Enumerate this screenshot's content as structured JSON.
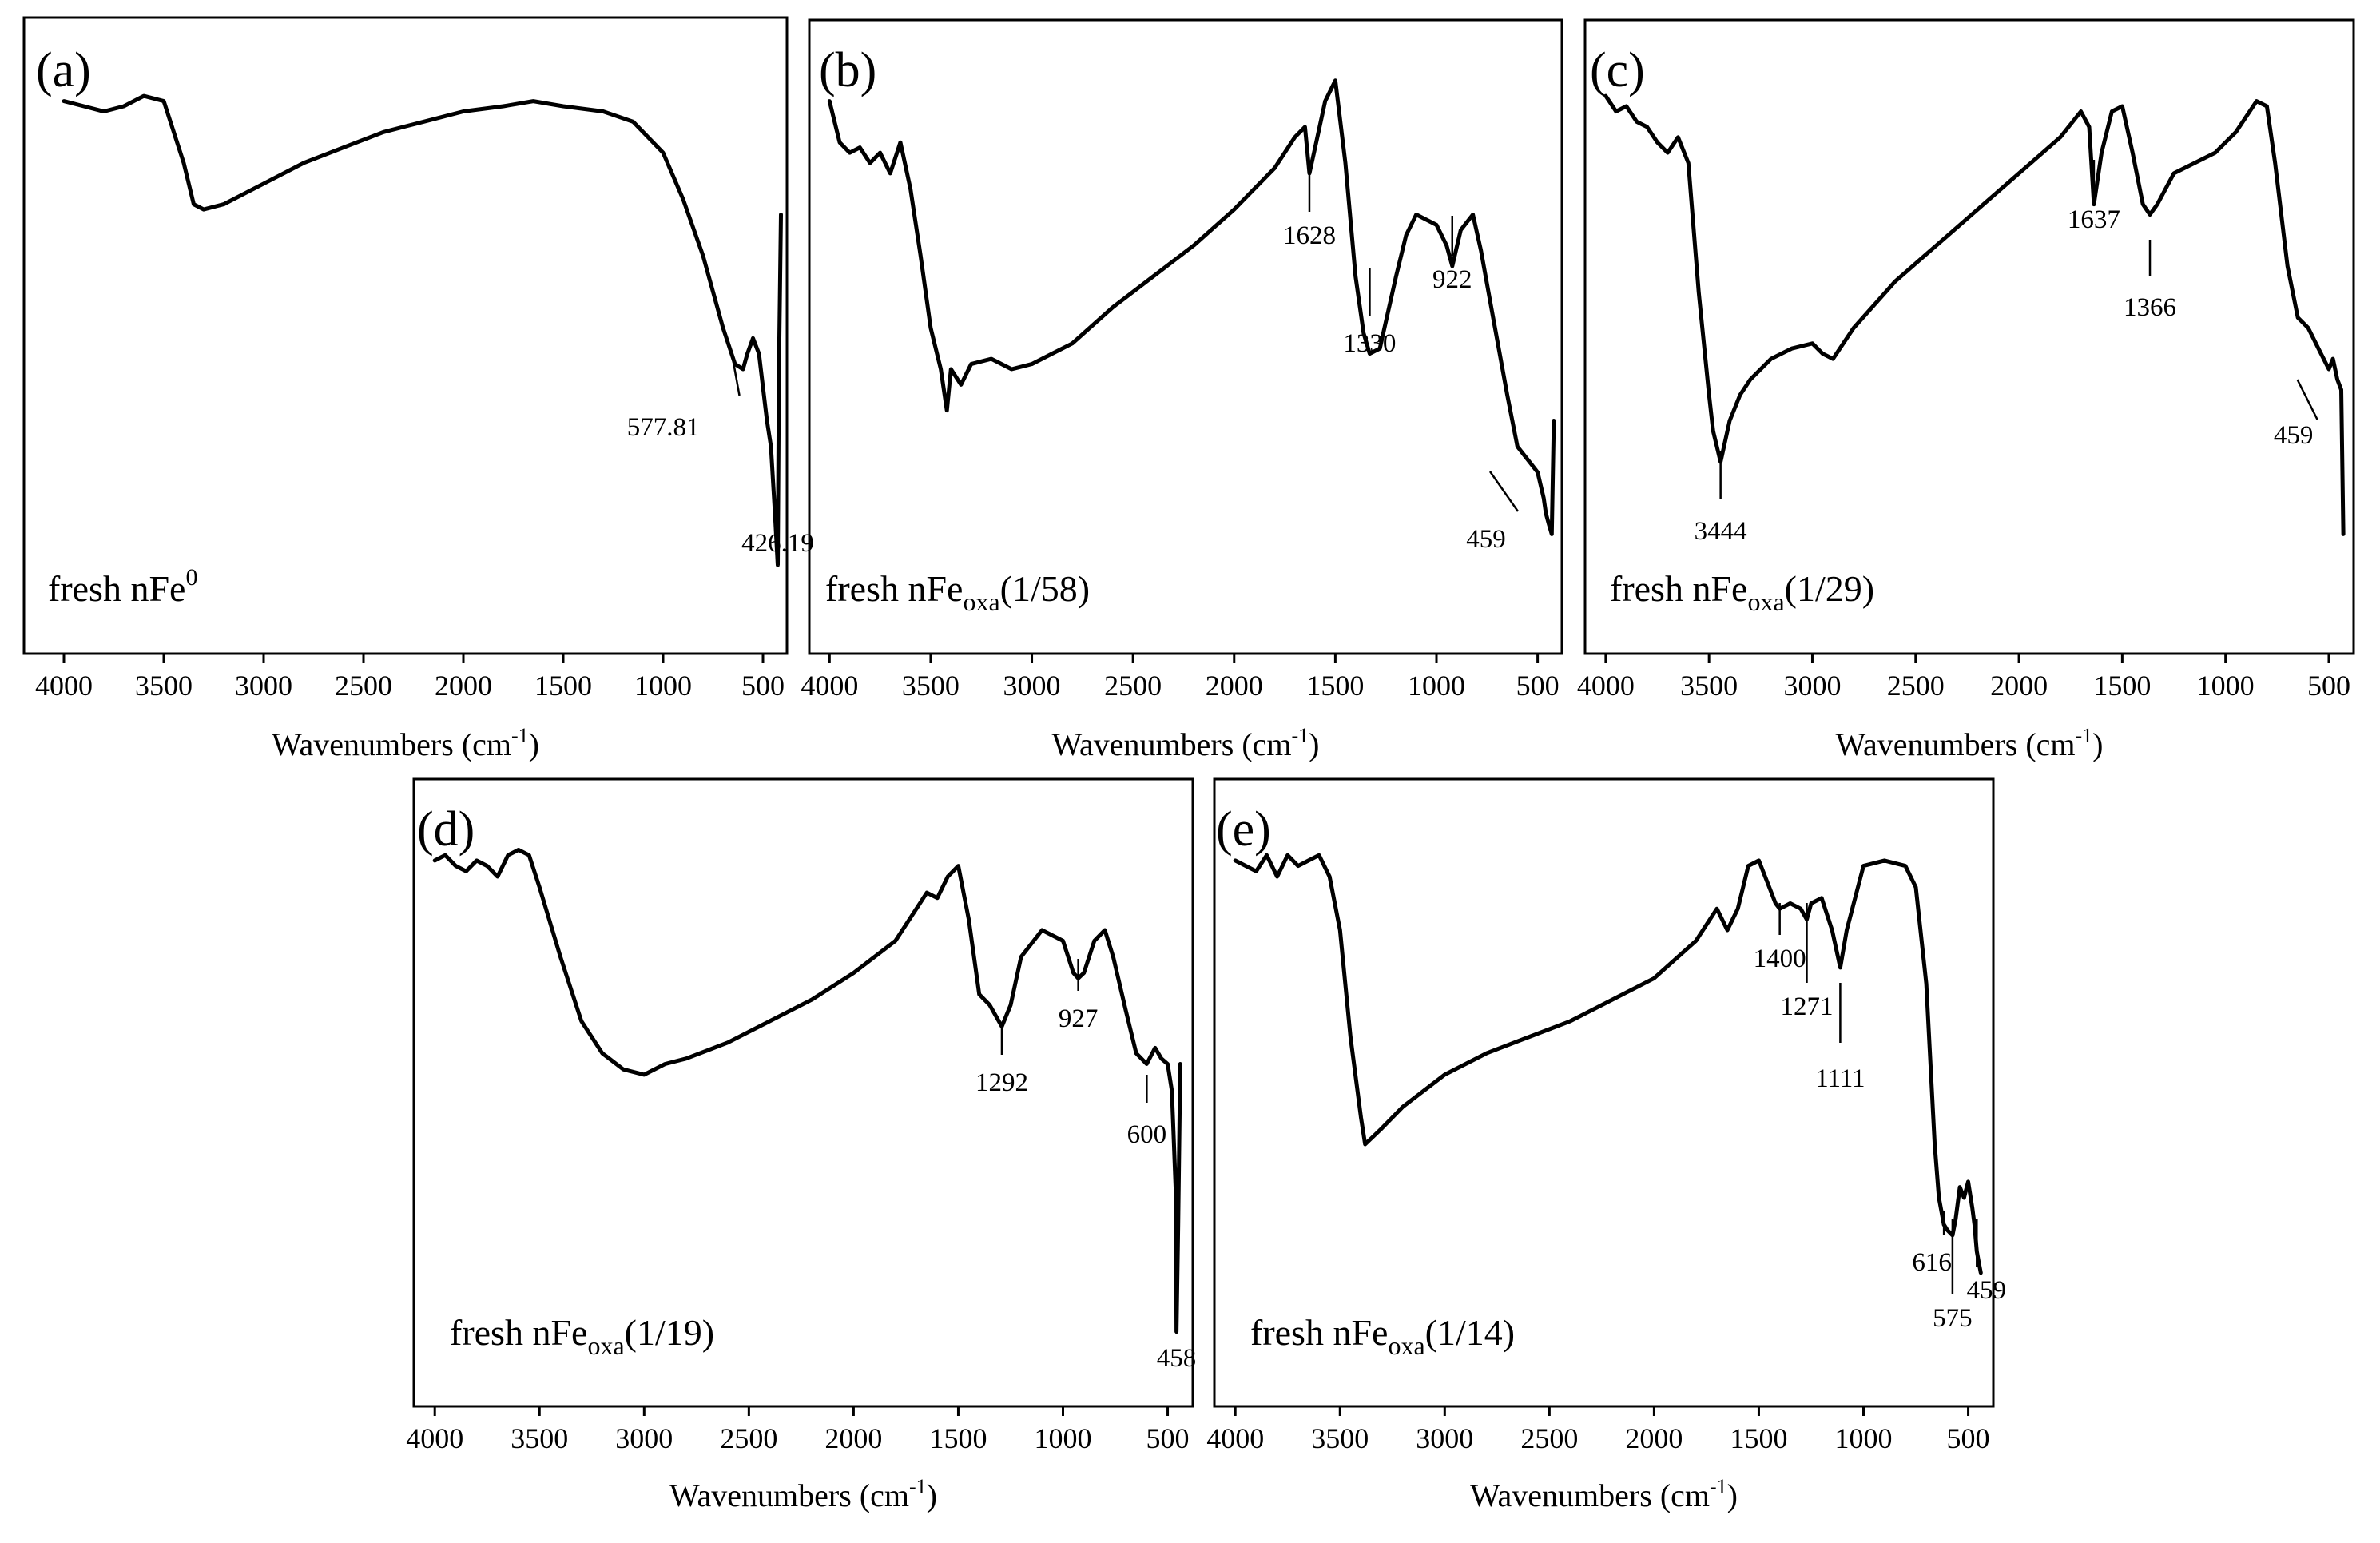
{
  "chart_data": [
    {
      "type": "line",
      "panel_label": "(a)",
      "sample": {
        "main": "fresh nFe",
        "sub": "",
        "sup": "0",
        "tail": ""
      },
      "xlabel": {
        "main": "Wavenumbers (cm",
        "sup": "-1",
        "close": ")"
      },
      "xlim": [
        4200,
        380
      ],
      "xticks": [
        4000,
        3500,
        3000,
        2500,
        2000,
        1500,
        1000,
        500
      ],
      "ylim": [
        0,
        100
      ],
      "series": [
        {
          "name": "fresh nFe0",
          "x": [
            4000,
            3900,
            3800,
            3700,
            3600,
            3500,
            3400,
            3350,
            3300,
            3200,
            3000,
            2800,
            2600,
            2400,
            2200,
            2000,
            1800,
            1650,
            1500,
            1300,
            1150,
            1000,
            900,
            800,
            700,
            640,
            600,
            577.81,
            550,
            520,
            480,
            460,
            440,
            426.19,
            420,
            410
          ],
          "y": [
            92,
            91,
            90,
            91,
            93,
            92,
            80,
            72,
            71,
            72,
            76,
            80,
            83,
            86,
            88,
            90,
            91,
            92,
            91,
            90,
            88,
            82,
            73,
            62,
            48,
            41,
            40,
            43,
            46,
            43,
            30,
            25,
            12,
            2,
            40,
            70
          ]
        }
      ],
      "annotations": [
        {
          "x": 577.81,
          "label": "577.81",
          "side": "left"
        },
        {
          "x": 426.19,
          "label": "426.19",
          "side": "below"
        }
      ]
    },
    {
      "type": "line",
      "panel_label": "(b)",
      "sample": {
        "main": "fresh nFe",
        "sub": "oxa",
        "sup": "",
        "tail": "(1/58)"
      },
      "xlabel": {
        "main": "Wavenumbers (cm",
        "sup": "-1",
        "close": ")"
      },
      "xlim": [
        4100,
        380
      ],
      "xticks": [
        4000,
        3500,
        3000,
        2500,
        2000,
        1500,
        1000,
        500
      ],
      "ylim": [
        0,
        100
      ],
      "series": [
        {
          "name": "fresh nFeoxa(1/58)",
          "x": [
            4000,
            3950,
            3900,
            3850,
            3800,
            3750,
            3700,
            3650,
            3600,
            3550,
            3500,
            3450,
            3420,
            3400,
            3350,
            3300,
            3200,
            3100,
            3000,
            2900,
            2800,
            2600,
            2400,
            2200,
            2000,
            1800,
            1700,
            1650,
            1628,
            1600,
            1550,
            1500,
            1450,
            1400,
            1360,
            1330,
            1280,
            1200,
            1150,
            1100,
            1000,
            950,
            922,
            880,
            820,
            780,
            720,
            650,
            600,
            540,
            500,
            470,
            459,
            445,
            430,
            420
          ],
          "y": [
            92,
            84,
            82,
            83,
            80,
            82,
            78,
            84,
            75,
            62,
            48,
            40,
            32,
            40,
            37,
            41,
            42,
            40,
            41,
            43,
            45,
            52,
            58,
            64,
            71,
            79,
            85,
            87,
            78,
            83,
            92,
            96,
            80,
            58,
            47,
            43,
            44,
            58,
            66,
            70,
            68,
            64,
            60,
            67,
            70,
            63,
            50,
            35,
            25,
            22,
            20,
            15,
            12,
            10,
            8,
            30
          ]
        }
      ],
      "annotations": [
        {
          "x": 1628,
          "label": "1628",
          "side": "below"
        },
        {
          "x": 1330,
          "label": "1330",
          "side": "below"
        },
        {
          "x": 922,
          "label": "922",
          "side": "below"
        },
        {
          "x": 459,
          "label": "459",
          "side": "left"
        }
      ]
    },
    {
      "type": "line",
      "panel_label": "(c)",
      "sample": {
        "main": "fresh nFe",
        "sub": "oxa",
        "sup": "",
        "tail": "(1/29)"
      },
      "xlabel": {
        "main": "Wavenumbers (cm",
        "sup": "-1",
        "close": ")"
      },
      "xlim": [
        4100,
        380
      ],
      "xticks": [
        4000,
        3500,
        3000,
        2500,
        2000,
        1500,
        1000,
        500
      ],
      "ylim": [
        0,
        100
      ],
      "series": [
        {
          "name": "fresh nFeoxa(1/29)",
          "x": [
            4000,
            3950,
            3900,
            3850,
            3800,
            3750,
            3700,
            3650,
            3600,
            3550,
            3500,
            3480,
            3444,
            3400,
            3350,
            3300,
            3200,
            3100,
            3000,
            2950,
            2900,
            2800,
            2600,
            2400,
            2200,
            2000,
            1800,
            1700,
            1660,
            1637,
            1600,
            1550,
            1500,
            1450,
            1400,
            1366,
            1330,
            1250,
            1150,
            1050,
            950,
            850,
            800,
            760,
            700,
            650,
            600,
            550,
            500,
            480,
            459,
            440,
            430
          ],
          "y": [
            93,
            90,
            91,
            88,
            87,
            84,
            82,
            85,
            80,
            55,
            35,
            28,
            22,
            30,
            35,
            38,
            42,
            44,
            45,
            43,
            42,
            48,
            57,
            64,
            71,
            78,
            85,
            90,
            87,
            72,
            82,
            90,
            91,
            82,
            72,
            70,
            72,
            78,
            80,
            82,
            86,
            92,
            91,
            80,
            60,
            50,
            48,
            44,
            40,
            42,
            38,
            36,
            8
          ]
        }
      ],
      "annotations": [
        {
          "x": 1637,
          "label": "1637",
          "side": "below"
        },
        {
          "x": 1366,
          "label": "1366",
          "side": "below"
        },
        {
          "x": 459,
          "label": "459",
          "side": "left"
        },
        {
          "x": 3444,
          "label": "3444",
          "side": "below"
        }
      ]
    },
    {
      "type": "line",
      "panel_label": "(d)",
      "sample": {
        "main": "fresh nFe",
        "sub": "oxa",
        "sup": "",
        "tail": "(1/19)"
      },
      "xlabel": {
        "main": "Wavenumbers (cm",
        "sup": "-1",
        "close": ")"
      },
      "xlim": [
        4100,
        380
      ],
      "xticks": [
        4000,
        3500,
        3000,
        2500,
        2000,
        1500,
        1000,
        500
      ],
      "ylim": [
        0,
        100
      ],
      "series": [
        {
          "name": "fresh nFeoxa(1/19)",
          "x": [
            4000,
            3950,
            3900,
            3850,
            3800,
            3750,
            3700,
            3650,
            3600,
            3550,
            3500,
            3400,
            3300,
            3200,
            3100,
            3000,
            2900,
            2800,
            2600,
            2400,
            2200,
            2000,
            1800,
            1700,
            1650,
            1600,
            1550,
            1500,
            1450,
            1400,
            1350,
            1292,
            1250,
            1200,
            1100,
            1000,
            950,
            927,
            900,
            850,
            800,
            760,
            700,
            650,
            600,
            560,
            530,
            500,
            480,
            460,
            458,
            450,
            440
          ],
          "y": [
            93,
            94,
            92,
            91,
            93,
            92,
            90,
            94,
            95,
            94,
            88,
            75,
            63,
            57,
            54,
            53,
            55,
            56,
            59,
            63,
            67,
            72,
            78,
            84,
            87,
            86,
            90,
            92,
            82,
            68,
            66,
            62,
            66,
            75,
            80,
            78,
            72,
            71,
            72,
            78,
            80,
            75,
            65,
            57,
            55,
            58,
            56,
            55,
            50,
            30,
            5,
            25,
            55
          ]
        }
      ],
      "annotations": [
        {
          "x": 1292,
          "label": "1292",
          "side": "below"
        },
        {
          "x": 927,
          "label": "927",
          "side": "below"
        },
        {
          "x": 600,
          "label": "600",
          "side": "below"
        },
        {
          "x": 458,
          "label": "458",
          "side": "below"
        }
      ]
    },
    {
      "type": "line",
      "panel_label": "(e)",
      "sample": {
        "main": "fresh nFe",
        "sub": "oxa",
        "sup": "",
        "tail": "(1/14)"
      },
      "xlabel": {
        "main": "Wavenumbers (cm",
        "sup": "-1",
        "close": ")"
      },
      "xlim": [
        4100,
        380
      ],
      "xticks": [
        4000,
        3500,
        3000,
        2500,
        2000,
        1500,
        1000,
        500
      ],
      "ylim": [
        0,
        100
      ],
      "series": [
        {
          "name": "fresh nFeoxa(1/14)",
          "x": [
            4000,
            3950,
            3900,
            3850,
            3800,
            3750,
            3700,
            3650,
            3600,
            3550,
            3500,
            3450,
            3400,
            3380,
            3300,
            3200,
            3100,
            3000,
            2800,
            2600,
            2400,
            2200,
            2000,
            1800,
            1700,
            1650,
            1600,
            1550,
            1500,
            1450,
            1420,
            1400,
            1350,
            1300,
            1271,
            1250,
            1200,
            1150,
            1111,
            1080,
            1000,
            900,
            800,
            750,
            700,
            660,
            640,
            616,
            600,
            575,
            560,
            540,
            520,
            500,
            480,
            470,
            459,
            450,
            440
          ],
          "y": [
            93,
            92,
            91,
            94,
            90,
            94,
            92,
            93,
            94,
            90,
            80,
            60,
            45,
            40,
            43,
            47,
            50,
            53,
            57,
            60,
            63,
            67,
            71,
            78,
            84,
            80,
            84,
            92,
            93,
            88,
            85,
            84,
            85,
            84,
            82,
            85,
            86,
            80,
            73,
            80,
            92,
            93,
            92,
            88,
            70,
            40,
            30,
            25,
            24,
            23,
            26,
            32,
            30,
            33,
            28,
            25,
            20,
            18,
            16
          ]
        }
      ],
      "annotations": [
        {
          "x": 1400,
          "label": "1400",
          "side": "below"
        },
        {
          "x": 1271,
          "label": "1271",
          "side": "below"
        },
        {
          "x": 1111,
          "label": "1111",
          "side": "below"
        },
        {
          "x": 616,
          "label": "616",
          "side": "below"
        },
        {
          "x": 575,
          "label": "575",
          "side": "below"
        },
        {
          "x": 459,
          "label": "459",
          "side": "below"
        }
      ]
    }
  ]
}
